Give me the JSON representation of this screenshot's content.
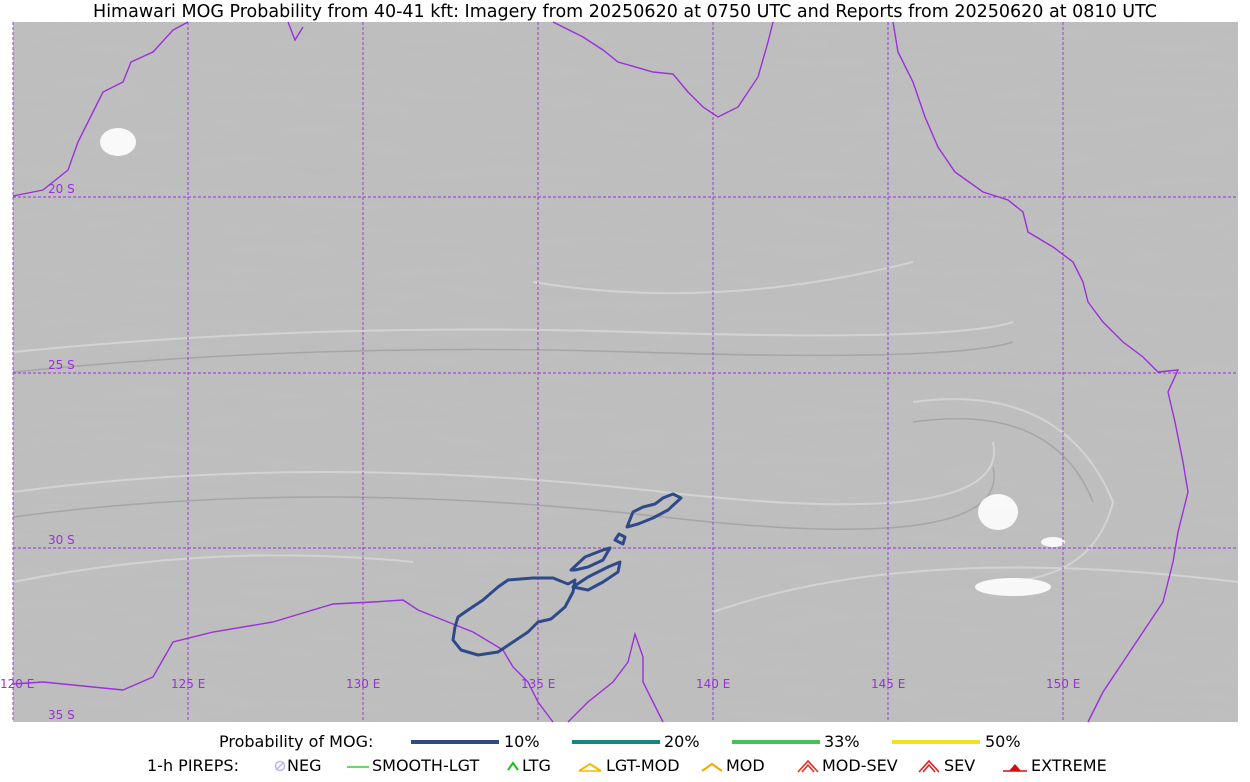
{
  "title": "Himawari MOG Probability from 40-41 kft: Imagery from 20250620 at 0750 UTC and Reports from 20250620 at 0810 UTC",
  "map": {
    "longitude_labels": [
      "120 E",
      "125 E",
      "130 E",
      "135 E",
      "140 E",
      "145 E",
      "150 E"
    ],
    "latitude_labels": [
      "20 S",
      "25 S",
      "30 S",
      "35 S"
    ],
    "colors": {
      "coastline": "#9b30d9",
      "gridline": "#9b30d9",
      "probability_contour": "#2f4a8a"
    }
  },
  "legend": {
    "probability": {
      "heading": "Probability of MOG:",
      "items": [
        {
          "label": "10%",
          "color": "#2f4a8a"
        },
        {
          "label": "20%",
          "color": "#16877c"
        },
        {
          "label": "33%",
          "color": "#44c453"
        },
        {
          "label": "50%",
          "color": "#f5e11a"
        }
      ]
    },
    "pireps": {
      "heading": "1-h PIREPS:",
      "items": [
        {
          "label": "NEG",
          "icon": "neg-pirep-icon",
          "color": "#b8b8f0"
        },
        {
          "label": "SMOOTH-LGT",
          "icon": "smooth-lgt-pirep-icon",
          "color": "#32cd32"
        },
        {
          "label": "LTG",
          "icon": "ltg-pirep-icon",
          "color": "#18c018"
        },
        {
          "label": "LGT-MOD",
          "icon": "lgt-mod-pirep-icon",
          "color": "#f5b800"
        },
        {
          "label": "MOD",
          "icon": "mod-pirep-icon",
          "color": "#f5a800"
        },
        {
          "label": "MOD-SEV",
          "icon": "mod-sev-pirep-icon",
          "color": "#e03020"
        },
        {
          "label": "SEV",
          "icon": "sev-pirep-icon",
          "color": "#e02020"
        },
        {
          "label": "EXTREME",
          "icon": "extreme-pirep-icon",
          "color": "#d01010"
        }
      ]
    }
  }
}
